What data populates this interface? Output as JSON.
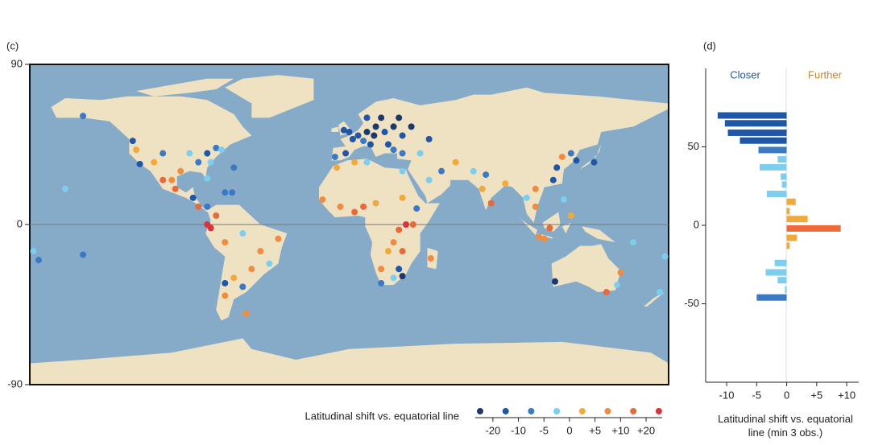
{
  "chart_data": [
    {
      "type": "scatter",
      "panel_label": "(c)",
      "xlim": [
        -180,
        180
      ],
      "ylim": [
        -90,
        90
      ],
      "yticks": [
        90,
        0,
        -90
      ],
      "x": [
        10,
        15,
        20,
        25,
        5,
        0,
        -3,
        -2,
        12,
        22,
        30,
        35,
        28,
        18,
        10,
        25,
        2,
        8,
        -8,
        14,
        30,
        40,
        45,
        -15,
        -5,
        3,
        8,
        15,
        30,
        38,
        36,
        32,
        28,
        25,
        30,
        22,
        18,
        28,
        30,
        25,
        18,
        46,
        3,
        10,
        -7,
        30,
        45,
        52,
        60,
        70,
        75,
        80,
        77,
        88,
        100,
        105,
        105,
        115,
        117,
        120,
        125,
        128,
        138,
        113,
        107,
        121,
        110,
        125,
        151,
        145,
        153,
        116,
        175,
        178,
        -178,
        -122,
        -118,
        -120,
        -110,
        -105,
        -95,
        -98,
        -100,
        -90,
        -85,
        -80,
        -75,
        -72,
        -78,
        -80,
        -88,
        -80,
        -85,
        -70,
        -66,
        -150,
        -160,
        -105,
        -65,
        -75,
        -78,
        -80,
        -70,
        -60,
        -50,
        -45,
        -55,
        -60,
        -70,
        -65,
        -40,
        -58,
        -70,
        -175,
        -150,
        160
      ],
      "y": [
        52,
        55,
        52,
        55,
        50,
        52,
        53,
        40,
        45,
        45,
        50,
        55,
        60,
        60,
        60,
        42,
        48,
        47,
        38,
        50,
        40,
        40,
        48,
        14,
        10,
        7,
        10,
        12,
        15,
        9,
        0,
        0,
        -3,
        -10,
        -15,
        -15,
        -25,
        -25,
        -29,
        -30,
        -33,
        -19,
        35,
        35,
        32,
        30,
        25,
        30,
        35,
        30,
        20,
        12,
        28,
        23,
        15,
        20,
        10,
        25,
        32,
        38,
        40,
        36,
        35,
        -2,
        -7,
        14,
        -8,
        5,
        -34,
        -38,
        -27,
        -32,
        -38,
        -18,
        -15,
        47,
        34,
        42,
        35,
        40,
        30,
        20,
        25,
        40,
        35,
        40,
        43,
        42,
        35,
        26,
        15,
        10,
        10,
        18,
        18,
        61,
        20,
        25,
        32,
        5,
        -2,
        0,
        -10,
        -5,
        -15,
        -22,
        -25,
        -35,
        -33,
        -30,
        -8,
        -50,
        -40,
        -20,
        -17,
        -10
      ],
      "values": [
        -22,
        -22,
        -18,
        -22,
        -18,
        -12,
        -15,
        -12,
        -12,
        -15,
        -18,
        -22,
        -22,
        -22,
        -15,
        -8,
        -12,
        -8,
        -8,
        -25,
        -8,
        -3,
        -12,
        5,
        8,
        12,
        15,
        4,
        2,
        -8,
        18,
        22,
        12,
        8,
        12,
        3,
        5,
        -12,
        -22,
        -3,
        -8,
        8,
        3,
        -5,
        3,
        -3,
        -3,
        -6,
        3,
        -3,
        3,
        12,
        -10,
        3,
        -3,
        5,
        8,
        -12,
        -12,
        5,
        -10,
        -12,
        -12,
        12,
        5,
        -3,
        8,
        3,
        -3,
        12,
        5,
        -22,
        -3,
        -3,
        -3,
        -12,
        -20,
        3,
        3,
        -8,
        5,
        12,
        8,
        -5,
        -10,
        -12,
        -8,
        -3,
        -3,
        -3,
        -12,
        -10,
        15,
        -8,
        -10,
        -8,
        -3,
        15,
        -10,
        15,
        25,
        22,
        5,
        -5,
        8,
        -5,
        5,
        -10,
        -12,
        3,
        8,
        8,
        5,
        -10,
        -10,
        -5
      ],
      "color_scale": {
        "title": "Latitudinal shift vs. equatorial line",
        "colors": [
          "#1b3a6b",
          "#1f56a6",
          "#3b79c4",
          "#7dcdee",
          "#f2a93b",
          "#ef8c42",
          "#e86a3a",
          "#d8343a"
        ],
        "ticks": [
          -20,
          -10,
          -5,
          0,
          {
            "value": 5,
            "label": "+5"
          },
          {
            "value": 10,
            "label": "+10"
          },
          {
            "value": 20,
            "label": "+20"
          }
        ]
      }
    },
    {
      "type": "hbar",
      "panel_label": "(d)",
      "left_label": "Closer",
      "left_color": "#1f56a6",
      "right_label": "Further",
      "right_color": "#c8862a",
      "x_label": "Latitudinal shift vs. equatorial line (min 3 obs.)",
      "xlim": [
        -13.5,
        12
      ],
      "ylim": [
        -100,
        100
      ],
      "xticks": [
        -10,
        -5,
        0,
        {
          "value": 5,
          "label": "+5"
        },
        {
          "value": 10,
          "label": "+10"
        }
      ],
      "yticks": [
        -50,
        0,
        50
      ],
      "y": [
        70,
        65,
        59,
        54,
        48,
        42,
        37,
        31,
        26,
        20,
        15,
        9,
        4,
        -2,
        -8,
        -13,
        -24,
        -30,
        -35,
        -41,
        -46
      ],
      "values": [
        -11.5,
        -10.3,
        -9.8,
        -7.8,
        -4.7,
        -1.5,
        -4.5,
        -1,
        -0.8,
        -3.3,
        1.5,
        0.5,
        3.5,
        9,
        1.7,
        0.5,
        -2,
        -3.5,
        -1.5,
        -0.3,
        -5
      ],
      "colors": [
        "#1f56a6",
        "#1f56a6",
        "#1f56a6",
        "#1f56a6",
        "#3b79c4",
        "#7dcdee",
        "#7dcdee",
        "#7dcdee",
        "#7dcdee",
        "#7dcdee",
        "#f2a93b",
        "#f2a93b",
        "#f2a93b",
        "#ef6a3a",
        "#f2a93b",
        "#f2a93b",
        "#7dcdee",
        "#7dcdee",
        "#7dcdee",
        "#7dcdee",
        "#3b79c4"
      ]
    }
  ]
}
